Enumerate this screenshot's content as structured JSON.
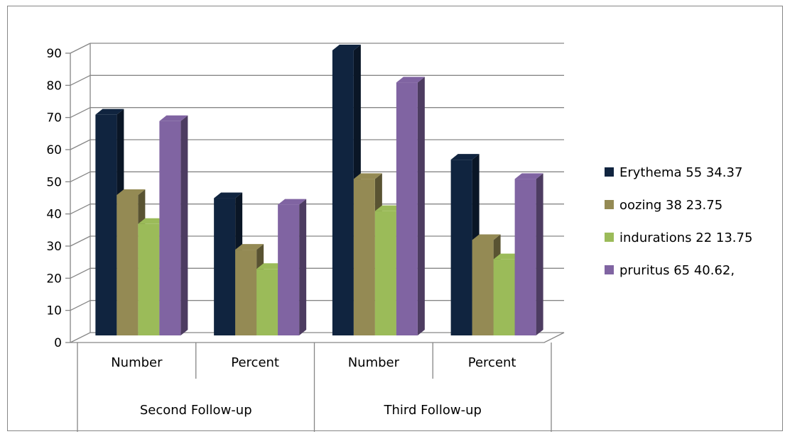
{
  "chart_data": {
    "type": "bar",
    "style": "3d-clustered-column",
    "ylim": [
      0,
      90
    ],
    "yticks": [
      "0",
      "10",
      "20",
      "30",
      "40",
      "50",
      "60",
      "70",
      "80",
      "90"
    ],
    "grid": true,
    "legend_position": "right",
    "categories": [
      "Number",
      "Percent",
      "Number",
      "Percent"
    ],
    "groups": [
      {
        "label": "Second Follow-up",
        "categories": [
          0,
          1
        ]
      },
      {
        "label": "Third Follow-up",
        "categories": [
          2,
          3
        ]
      }
    ],
    "series": [
      {
        "name": "Erythema  55 34.37",
        "color": "#10243f",
        "values": [
          70,
          44,
          90,
          56
        ]
      },
      {
        "name": "oozing 38 23.75",
        "color": "#948a54",
        "values": [
          45,
          28,
          50,
          31
        ]
      },
      {
        "name": "indurations 22 13.75",
        "color": "#9bbb59",
        "values": [
          36,
          22,
          40,
          25
        ]
      },
      {
        "name": "pruritus 65 40.62,",
        "color": "#8064a2",
        "values": [
          68,
          42,
          80,
          50
        ]
      }
    ]
  }
}
